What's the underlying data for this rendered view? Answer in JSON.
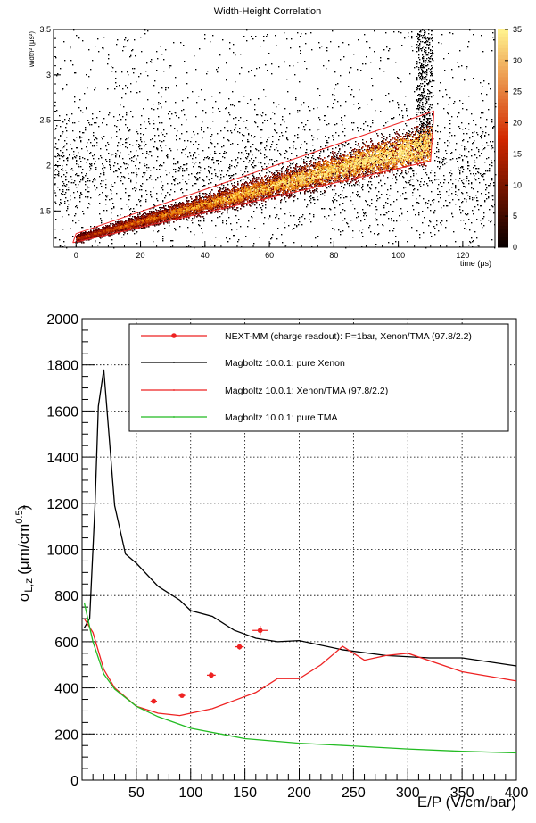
{
  "chart_data": [
    {
      "type": "heatmap",
      "title": "Width-Height Correlation",
      "xlabel": "time (μs)",
      "ylabel": "width² (μs²)",
      "xlim": [
        -7,
        130
      ],
      "ylim": [
        1.1,
        3.5
      ],
      "xticks": [
        0,
        20,
        40,
        60,
        80,
        100,
        120
      ],
      "yticks": [
        1.5,
        2,
        2.5,
        3,
        3.5
      ],
      "colorbar": {
        "range": [
          0,
          35
        ],
        "ticks": [
          0,
          5,
          10,
          15,
          20,
          25,
          30,
          35
        ]
      },
      "band": {
        "x": [
          0,
          110
        ],
        "y_center": [
          1.2,
          2.25
        ]
      },
      "cut_region": {
        "x": [
          -1,
          0,
          111,
          111,
          110,
          -1
        ],
        "y": [
          1.15,
          1.25,
          2.6,
          2.55,
          2.05,
          1.15
        ]
      },
      "colors": {
        "low": "#1a0000",
        "mid": "#d14a00",
        "high": "#ffe97a",
        "cut": "#ee2222"
      }
    },
    {
      "type": "line",
      "ylabel_main": "σ",
      "ylabel_sup": "*",
      "ylabel_sub": "L,z",
      "ylabel_unit": "(μm/cm",
      "ylabel_unit_sup": "0.5",
      "ylabel_close": ")",
      "xlabel": "E/P (V/cm/bar)",
      "xlim": [
        0,
        400
      ],
      "ylim": [
        0,
        2000
      ],
      "grid": true,
      "legend_position": "top-right",
      "xticks": [
        50,
        100,
        150,
        200,
        250,
        300,
        350,
        400
      ],
      "yticks": [
        0,
        200,
        400,
        600,
        800,
        1000,
        1200,
        1400,
        1600,
        1800,
        2000
      ],
      "series": [
        {
          "name": "NEXT-MM (charge readout): P=1bar, Xenon/TMA (97.8/2.2)",
          "color": "#ee2222",
          "kind": "points",
          "points": [
            {
              "x": 66,
              "y": 342,
              "xerr": 3,
              "yerr": 10
            },
            {
              "x": 92,
              "y": 367,
              "xerr": 3,
              "yerr": 10
            },
            {
              "x": 119,
              "y": 455,
              "xerr": 4,
              "yerr": 12
            },
            {
              "x": 145,
              "y": 578,
              "xerr": 4,
              "yerr": 12
            },
            {
              "x": 164,
              "y": 649,
              "xerr": 7,
              "yerr": 20
            }
          ]
        },
        {
          "name": "Magboltz 10.0.1: pure Xenon",
          "color": "#000000",
          "kind": "line",
          "x": [
            2,
            7,
            12,
            15,
            20,
            30,
            40,
            50,
            70,
            90,
            100,
            120,
            140,
            160,
            180,
            200,
            240,
            280,
            320,
            350,
            400
          ],
          "y": [
            660,
            700,
            1200,
            1620,
            1780,
            1190,
            980,
            940,
            840,
            780,
            735,
            710,
            650,
            615,
            600,
            605,
            565,
            540,
            530,
            530,
            495
          ]
        },
        {
          "name": "Magboltz 10.0.1: Xenon/TMA (97.8/2.2)",
          "color": "#ee2222",
          "kind": "line",
          "x": [
            2,
            10,
            20,
            30,
            50,
            70,
            90,
            100,
            120,
            140,
            160,
            180,
            200,
            220,
            240,
            260,
            280,
            300,
            350,
            400
          ],
          "y": [
            700,
            640,
            480,
            400,
            320,
            290,
            280,
            290,
            310,
            345,
            380,
            440,
            440,
            500,
            580,
            520,
            540,
            550,
            470,
            430
          ]
        },
        {
          "name": "Magboltz 10.0.1: pure TMA",
          "color": "#22bb22",
          "kind": "line",
          "x": [
            2,
            10,
            20,
            30,
            50,
            70,
            100,
            150,
            200,
            250,
            300,
            350,
            400
          ],
          "y": [
            770,
            600,
            460,
            395,
            320,
            275,
            225,
            180,
            160,
            148,
            135,
            125,
            118
          ]
        }
      ]
    }
  ]
}
